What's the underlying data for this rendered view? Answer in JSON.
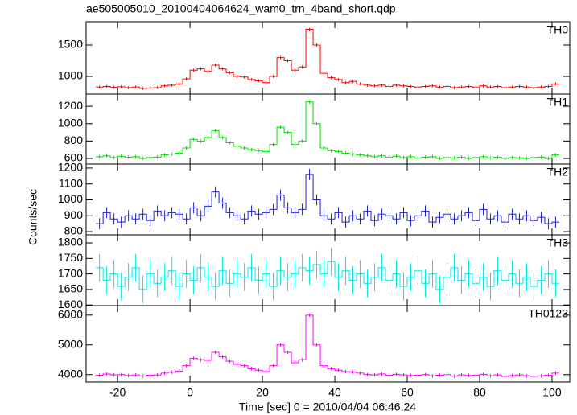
{
  "chart_data": {
    "type": "step",
    "title": "ae505005010_20100404064624_wam0_trn_4band_short.qdp",
    "xlabel": "Time [sec] 0 = 2010/04/04 06:46:24",
    "ylabel": "Counts/sec",
    "xlim": [
      -28.7,
      104.9
    ],
    "xticks": [
      -20,
      0,
      20,
      40,
      60,
      80,
      100
    ],
    "x": [
      -25,
      -23,
      -21,
      -19,
      -17,
      -15,
      -13,
      -11,
      -9,
      -7,
      -5,
      -3,
      -1,
      1,
      3,
      5,
      7,
      9,
      11,
      13,
      15,
      17,
      19,
      21,
      23,
      25,
      27,
      29,
      31,
      33,
      35,
      37,
      39,
      41,
      43,
      45,
      47,
      49,
      51,
      53,
      55,
      57,
      59,
      61,
      63,
      65,
      67,
      69,
      71,
      73,
      75,
      77,
      79,
      81,
      83,
      85,
      87,
      89,
      91,
      93,
      95,
      97,
      99,
      101
    ],
    "panels": [
      {
        "name": "TH0",
        "color": "#ff0000",
        "error": 25,
        "ylim": [
          718,
          1872
        ],
        "yticks": [
          1000,
          1500
        ],
        "values": [
          830,
          840,
          825,
          835,
          820,
          830,
          810,
          815,
          820,
          850,
          860,
          880,
          960,
          1100,
          1120,
          1080,
          1180,
          1120,
          1060,
          1000,
          990,
          950,
          930,
          900,
          1000,
          1300,
          1250,
          1100,
          1150,
          1750,
          1500,
          1050,
          980,
          950,
          900,
          920,
          880,
          860,
          850,
          860,
          840,
          860,
          850,
          840,
          830,
          840,
          850,
          830,
          840,
          820,
          830,
          840,
          830,
          850,
          830,
          840,
          820,
          830,
          840,
          830,
          820,
          830,
          840,
          880
        ]
      },
      {
        "name": "TH1",
        "color": "#00e000",
        "error": 20,
        "ylim": [
          535,
          1340
        ],
        "yticks": [
          600,
          800,
          1000,
          1200
        ],
        "values": [
          620,
          630,
          610,
          625,
          615,
          620,
          600,
          610,
          615,
          640,
          650,
          660,
          720,
          820,
          800,
          840,
          920,
          840,
          780,
          740,
          720,
          700,
          690,
          680,
          760,
          960,
          900,
          760,
          800,
          1250,
          1000,
          720,
          690,
          680,
          660,
          650,
          640,
          630,
          620,
          630,
          615,
          625,
          610,
          620,
          605,
          615,
          620,
          600,
          610,
          605,
          615,
          600,
          610,
          620,
          605,
          615,
          600,
          610,
          605,
          600,
          610,
          615,
          600,
          640
        ]
      },
      {
        "name": "TH2",
        "color": "#2020d0",
        "error": 35,
        "ylim": [
          780,
          1225
        ],
        "yticks": [
          800,
          900,
          1000,
          1100,
          1200
        ],
        "values": [
          850,
          920,
          880,
          860,
          900,
          880,
          910,
          870,
          930,
          900,
          920,
          910,
          880,
          950,
          900,
          960,
          1050,
          980,
          920,
          900,
          880,
          930,
          910,
          920,
          940,
          1030,
          950,
          920,
          940,
          1160,
          1000,
          900,
          880,
          920,
          860,
          900,
          880,
          930,
          870,
          910,
          900,
          880,
          920,
          870,
          900,
          930,
          860,
          890,
          910,
          880,
          900,
          920,
          870,
          940,
          880,
          900,
          860,
          910,
          880,
          900,
          870,
          890,
          850,
          860
        ]
      },
      {
        "name": "TH3",
        "color": "#00e8e8",
        "error": 45,
        "ylim": [
          1598,
          1826
        ],
        "yticks": [
          1600,
          1650,
          1700,
          1750,
          1800
        ],
        "values": [
          1720,
          1680,
          1700,
          1660,
          1690,
          1720,
          1650,
          1700,
          1670,
          1690,
          1710,
          1660,
          1700,
          1680,
          1720,
          1690,
          1660,
          1710,
          1670,
          1700,
          1690,
          1720,
          1680,
          1700,
          1660,
          1710,
          1690,
          1700,
          1720,
          1710,
          1730,
          1700,
          1740,
          1690,
          1710,
          1680,
          1700,
          1670,
          1690,
          1720,
          1680,
          1700,
          1660,
          1690,
          1710,
          1670,
          1700,
          1650,
          1690,
          1720,
          1680,
          1700,
          1670,
          1690,
          1660,
          1710,
          1680,
          1700,
          1670,
          1690,
          1660,
          1680,
          1700,
          1670
        ]
      },
      {
        "name": "TH0123",
        "color": "#ff00ff",
        "error": 60,
        "ylim": [
          3750,
          6320
        ],
        "yticks": [
          4000,
          5000,
          6000
        ],
        "values": [
          3980,
          4020,
          3990,
          4000,
          3970,
          3990,
          3950,
          3980,
          3990,
          4050,
          4080,
          4120,
          4300,
          4550,
          4500,
          4480,
          4750,
          4600,
          4450,
          4350,
          4300,
          4200,
          4150,
          4100,
          4300,
          5000,
          4750,
          4400,
          4500,
          6000,
          5000,
          4300,
          4200,
          4150,
          4100,
          4080,
          4050,
          4000,
          3990,
          4020,
          3980,
          4010,
          3990,
          3970,
          3980,
          4000,
          3960,
          3980,
          4000,
          3950,
          3990,
          3970,
          3980,
          4010,
          3960,
          3990,
          3940,
          3970,
          3990,
          3960,
          3940,
          3960,
          3980,
          4050
        ]
      }
    ]
  }
}
